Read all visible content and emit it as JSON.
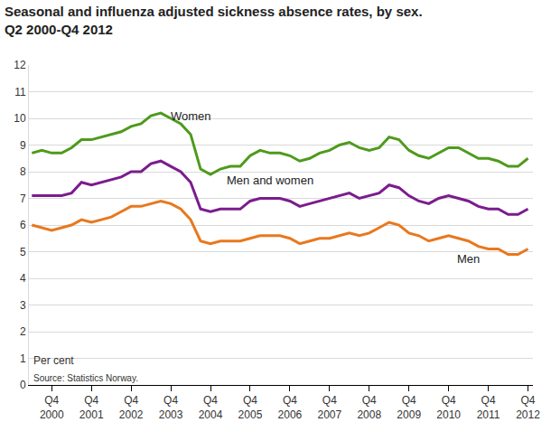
{
  "chart_data": {
    "type": "line",
    "title": "Seasonal and influenza adjusted sickness absence rates, by sex.",
    "subtitle": "Q2 2000-Q4 2012",
    "y_label": "Per cent",
    "source": "Source: Statistics Norway.",
    "categories": [
      null,
      null,
      "Q4 2000",
      null,
      null,
      null,
      "Q4 2001",
      null,
      null,
      null,
      "Q4 2002",
      null,
      null,
      null,
      "Q4 2003",
      null,
      null,
      null,
      "Q4 2004",
      null,
      null,
      null,
      "Q4 2005",
      null,
      null,
      null,
      "Q4 2006",
      null,
      null,
      null,
      "Q4 2007",
      null,
      null,
      null,
      "Q4 2008",
      null,
      null,
      null,
      "Q4 2009",
      null,
      null,
      null,
      "Q4 2010",
      null,
      null,
      null,
      "Q4 2011",
      null,
      null,
      null,
      "Q4 2012"
    ],
    "series": [
      {
        "name": "Women",
        "color": "#4e9a1c",
        "values": [
          8.7,
          8.8,
          8.7,
          8.7,
          8.9,
          9.2,
          9.2,
          9.3,
          9.4,
          9.5,
          9.7,
          9.8,
          10.1,
          10.2,
          10.0,
          9.8,
          9.4,
          8.1,
          7.9,
          8.1,
          8.2,
          8.2,
          8.6,
          8.8,
          8.7,
          8.7,
          8.6,
          8.4,
          8.5,
          8.7,
          8.8,
          9.0,
          9.1,
          8.9,
          8.8,
          8.9,
          9.3,
          9.2,
          8.8,
          8.6,
          8.5,
          8.7,
          8.9,
          8.9,
          8.7,
          8.5,
          8.5,
          8.4,
          8.2,
          8.2,
          8.5
        ]
      },
      {
        "name": "Men and women",
        "color": "#7b1c8e",
        "values": [
          7.1,
          7.1,
          7.1,
          7.1,
          7.2,
          7.6,
          7.5,
          7.6,
          7.7,
          7.8,
          8.0,
          8.0,
          8.3,
          8.4,
          8.2,
          8.0,
          7.6,
          6.6,
          6.5,
          6.6,
          6.6,
          6.6,
          6.9,
          7.0,
          7.0,
          7.0,
          6.9,
          6.7,
          6.8,
          6.9,
          7.0,
          7.1,
          7.2,
          7.0,
          7.1,
          7.2,
          7.5,
          7.4,
          7.1,
          6.9,
          6.8,
          7.0,
          7.1,
          7.0,
          6.9,
          6.7,
          6.6,
          6.6,
          6.4,
          6.4,
          6.6
        ]
      },
      {
        "name": "Men",
        "color": "#e8781e",
        "values": [
          6.0,
          5.9,
          5.8,
          5.9,
          6.0,
          6.2,
          6.1,
          6.2,
          6.3,
          6.5,
          6.7,
          6.7,
          6.8,
          6.9,
          6.8,
          6.6,
          6.2,
          5.4,
          5.3,
          5.4,
          5.4,
          5.4,
          5.5,
          5.6,
          5.6,
          5.6,
          5.5,
          5.3,
          5.4,
          5.5,
          5.5,
          5.6,
          5.7,
          5.6,
          5.7,
          5.9,
          6.1,
          6.0,
          5.7,
          5.6,
          5.4,
          5.5,
          5.6,
          5.5,
          5.4,
          5.2,
          5.1,
          5.1,
          4.9,
          4.9,
          5.1
        ]
      }
    ],
    "ylim": [
      0,
      12
    ],
    "yticks": [
      0,
      1,
      2,
      3,
      4,
      5,
      6,
      7,
      8,
      9,
      10,
      11,
      12
    ],
    "grid": true
  }
}
